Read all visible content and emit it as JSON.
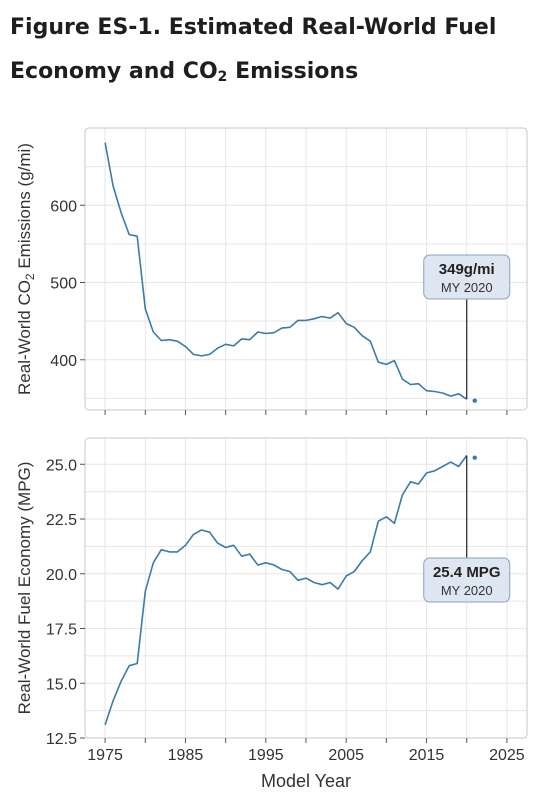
{
  "title": {
    "line1": "Figure ES-1. Estimated Real-World Fuel",
    "line2_pre": "Economy and CO",
    "line2_sub": "2",
    "line2_post": " Emissions"
  },
  "colors": {
    "line": "#3a7bad",
    "callout_fill": "#dde6f1",
    "callout_stroke": "#8da3c0",
    "grid": "#e6e6e6",
    "frame": "#c8c8c8"
  },
  "chart_data": [
    {
      "type": "line",
      "ylabel_pre": "Real-World CO",
      "ylabel_sub": "2",
      "ylabel_post": " Emissions (g/mi)",
      "xlim": [
        1972.5,
        2027.5
      ],
      "ylim": [
        335,
        700
      ],
      "yticks": [
        400,
        500,
        600
      ],
      "grid": true,
      "series": [
        {
          "x": [
            1975,
            1976,
            1977,
            1978,
            1979,
            1980,
            1981,
            1982,
            1983,
            1984,
            1985,
            1986,
            1987,
            1988,
            1989,
            1990,
            1991,
            1992,
            1993,
            1994,
            1995,
            1996,
            1997,
            1998,
            1999,
            2000,
            2001,
            2002,
            2003,
            2004,
            2005,
            2006,
            2007,
            2008,
            2009,
            2010,
            2011,
            2012,
            2013,
            2014,
            2015,
            2016,
            2017,
            2018,
            2019,
            2020
          ],
          "y": [
            681,
            625,
            590,
            562,
            560,
            466,
            436,
            425,
            426,
            424,
            417,
            407,
            405,
            407,
            415,
            420,
            418,
            427,
            426,
            436,
            434,
            435,
            441,
            442,
            451,
            451,
            453,
            456,
            454,
            461,
            447,
            442,
            431,
            424,
            397,
            394,
            399,
            375,
            368,
            369,
            360,
            359,
            357,
            353,
            356,
            349
          ]
        }
      ],
      "preliminary": {
        "x": 2021,
        "y": 347
      },
      "callout": {
        "value": "349g/mi",
        "label": "MY 2020",
        "x": 2020,
        "y": 349
      }
    },
    {
      "type": "line",
      "ylabel": "Real-World Fuel Economy (MPG)",
      "xlabel": "Model Year",
      "xlim": [
        1972.5,
        2027.5
      ],
      "ylim": [
        12.5,
        26.2
      ],
      "yticks": [
        "12.5",
        "15.0",
        "17.5",
        "20.0",
        "22.5",
        "25.0"
      ],
      "xticks": [
        "1975",
        "1985",
        "1995",
        "2005",
        "2015",
        "2025"
      ],
      "grid": true,
      "series": [
        {
          "x": [
            1975,
            1976,
            1977,
            1978,
            1979,
            1980,
            1981,
            1982,
            1983,
            1984,
            1985,
            1986,
            1987,
            1988,
            1989,
            1990,
            1991,
            1992,
            1993,
            1994,
            1995,
            1996,
            1997,
            1998,
            1999,
            2000,
            2001,
            2002,
            2003,
            2004,
            2005,
            2006,
            2007,
            2008,
            2009,
            2010,
            2011,
            2012,
            2013,
            2014,
            2015,
            2016,
            2017,
            2018,
            2019,
            2020
          ],
          "y": [
            13.1,
            14.2,
            15.1,
            15.8,
            15.9,
            19.2,
            20.5,
            21.1,
            21.0,
            21.0,
            21.3,
            21.8,
            22.0,
            21.9,
            21.4,
            21.2,
            21.3,
            20.8,
            20.9,
            20.4,
            20.5,
            20.4,
            20.2,
            20.1,
            19.7,
            19.8,
            19.6,
            19.5,
            19.6,
            19.3,
            19.9,
            20.1,
            20.6,
            21.0,
            22.4,
            22.6,
            22.3,
            23.6,
            24.2,
            24.1,
            24.6,
            24.7,
            24.9,
            25.1,
            24.9,
            25.4
          ]
        }
      ],
      "preliminary": {
        "x": 2021,
        "y": 25.3
      },
      "callout": {
        "value": "25.4 MPG",
        "label": "MY 2020",
        "x": 2020,
        "y": 25.4
      }
    }
  ]
}
